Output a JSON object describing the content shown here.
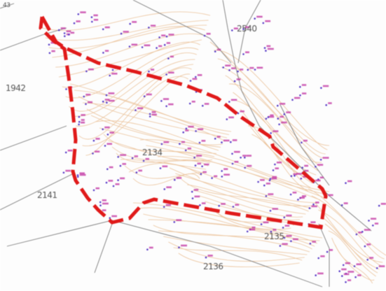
{
  "map": {
    "parcel_labels": [
      "2540",
      "1942",
      "2134",
      "2141",
      "2135",
      "2136"
    ],
    "corner_label": "43"
  },
  "colors": {
    "boundary": "#e01a1a",
    "contour": "#e8b98a",
    "parcel_line": "#7a7a7a",
    "elevation_text": "#c030a0",
    "elevation_point": "#5a3ec8"
  },
  "icons": {
    "elevation_point": "survey-point-icon"
  }
}
